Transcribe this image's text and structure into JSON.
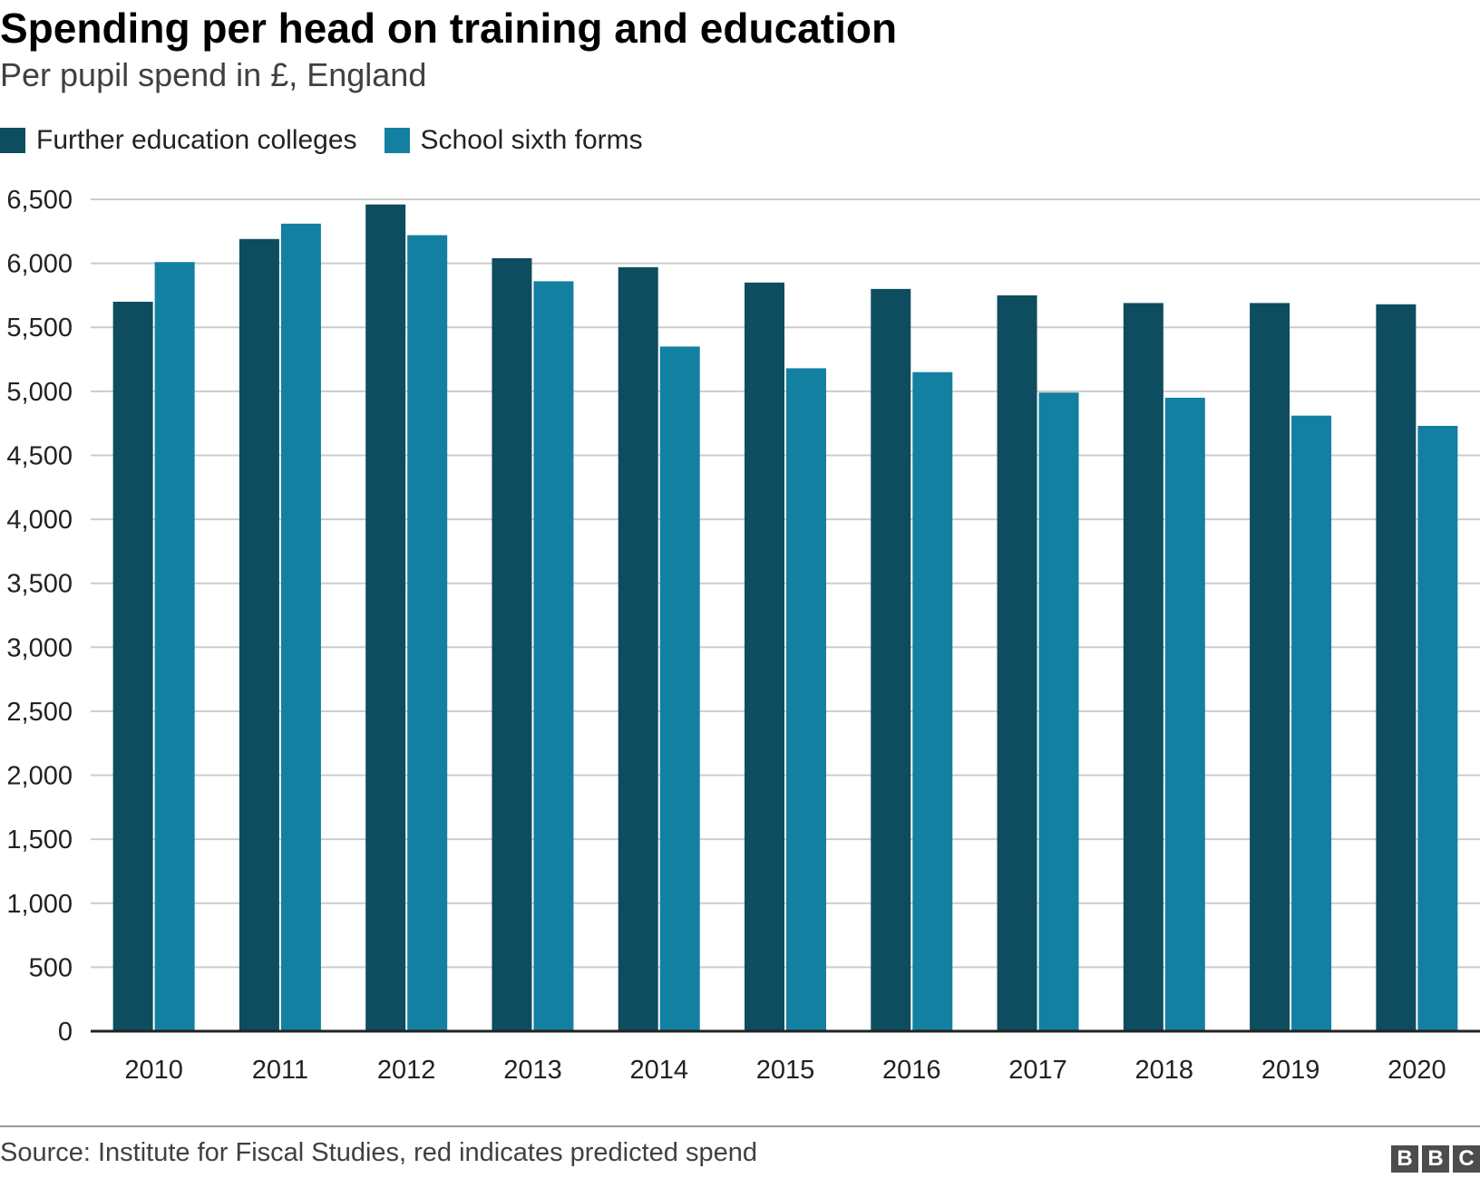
{
  "header": {
    "title": "Spending per head on training and education",
    "subtitle": "Per pupil spend in £, England"
  },
  "legend": [
    {
      "label": "Further education colleges",
      "color": "#0d4d5f"
    },
    {
      "label": "School sixth forms",
      "color": "#1380a1"
    }
  ],
  "footer": {
    "source": "Source: Institute for Fiscal Studies, red indicates predicted spend",
    "logo": [
      "B",
      "B",
      "C"
    ]
  },
  "chart_data": {
    "type": "bar",
    "categories": [
      "2010",
      "2011",
      "2012",
      "2013",
      "2014",
      "2015",
      "2016",
      "2017",
      "2018",
      "2019",
      "2020"
    ],
    "series": [
      {
        "name": "Further education colleges",
        "color": "#0d4d5f",
        "values": [
          5700,
          6190,
          6460,
          6040,
          5970,
          5850,
          5800,
          5750,
          5690,
          5690,
          5680
        ]
      },
      {
        "name": "School sixth forms",
        "color": "#1380a1",
        "values": [
          6010,
          6310,
          6220,
          5860,
          5350,
          5180,
          5150,
          4990,
          4950,
          4810,
          4730
        ]
      }
    ],
    "title": "Spending per head on training and education",
    "subtitle": "Per pupil spend in £, England",
    "ylim": [
      0,
      6500
    ],
    "yticks": [
      0,
      500,
      1000,
      1500,
      2000,
      2500,
      3000,
      3500,
      4000,
      4500,
      5000,
      5500,
      6000,
      6500
    ],
    "ytick_labels": [
      "0",
      "500",
      "1,000",
      "1,500",
      "2,000",
      "2,500",
      "3,000",
      "3,500",
      "4,000",
      "4,500",
      "5,000",
      "5,500",
      "6,000",
      "6,500"
    ],
    "grid": true,
    "legend_position": "top-left"
  }
}
